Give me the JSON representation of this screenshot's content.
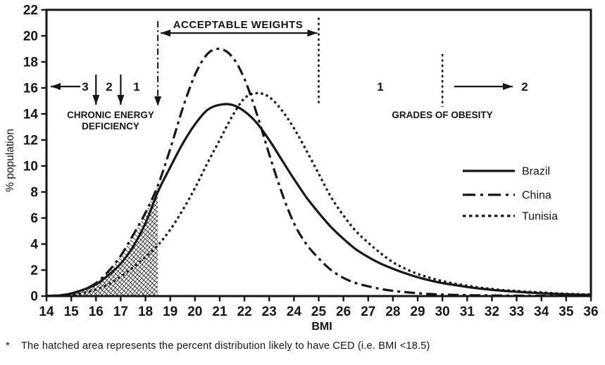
{
  "colors": {
    "ink": "#151515",
    "background": "#ffffff"
  },
  "chart_data": {
    "type": "line",
    "title": "",
    "xlabel": "BMI",
    "ylabel": "% population",
    "xlim": [
      14,
      36
    ],
    "ylim": [
      0,
      22
    ],
    "grid": false,
    "x_ticks": [
      14,
      15,
      16,
      17,
      18,
      19,
      20,
      21,
      22,
      23,
      24,
      25,
      26,
      27,
      28,
      29,
      30,
      31,
      32,
      33,
      34,
      35,
      36
    ],
    "y_ticks": [
      0,
      2,
      4,
      6,
      8,
      10,
      12,
      14,
      16,
      18,
      20,
      22
    ],
    "x": [
      14,
      14.5,
      15,
      15.5,
      16,
      16.5,
      17,
      17.5,
      18,
      18.5,
      19,
      19.5,
      20,
      20.5,
      21,
      21.5,
      22,
      22.5,
      23,
      23.5,
      24,
      24.5,
      25,
      25.5,
      26,
      26.5,
      27,
      27.5,
      28,
      28.5,
      29,
      29.5,
      30,
      30.5,
      31,
      31.5,
      32,
      32.5,
      33,
      33.5,
      34,
      34.5,
      35,
      35.5,
      36
    ],
    "series": [
      {
        "name": "Brazil",
        "style": "solid",
        "values": [
          0,
          0.05,
          0.2,
          0.5,
          0.9,
          1.6,
          2.5,
          3.8,
          5.6,
          8.0,
          9.9,
          11.7,
          13.2,
          14.3,
          14.7,
          14.7,
          14.2,
          13.3,
          12.0,
          10.5,
          9.0,
          7.6,
          6.4,
          5.3,
          4.4,
          3.6,
          3.0,
          2.5,
          2.1,
          1.75,
          1.45,
          1.2,
          1.0,
          0.85,
          0.7,
          0.58,
          0.48,
          0.4,
          0.33,
          0.27,
          0.22,
          0.18,
          0.14,
          0.11,
          0.09
        ]
      },
      {
        "name": "China",
        "style": "dash-dot",
        "values": [
          0,
          0.05,
          0.2,
          0.5,
          1.0,
          1.9,
          3.1,
          4.7,
          6.4,
          8.5,
          11.3,
          14.4,
          17.0,
          18.6,
          19.0,
          18.4,
          16.7,
          14.0,
          10.9,
          8.0,
          5.6,
          4.0,
          2.9,
          2.0,
          1.4,
          1.0,
          0.75,
          0.55,
          0.4,
          0.3,
          0.22,
          0.16,
          0.12,
          0.09,
          0.07,
          0.06,
          0.05,
          0.04,
          0.03,
          0.03,
          0.02,
          0.02,
          0.02,
          0.01,
          0.01
        ]
      },
      {
        "name": "Tunisia",
        "style": "dotted",
        "values": [
          0,
          0,
          0.1,
          0.25,
          0.5,
          0.9,
          1.5,
          2.2,
          3.0,
          3.9,
          5.1,
          6.6,
          8.3,
          10.2,
          12.0,
          13.8,
          15.2,
          15.6,
          15.3,
          14.3,
          12.9,
          11.2,
          9.4,
          7.6,
          6.2,
          5.0,
          4.1,
          3.3,
          2.6,
          2.1,
          1.7,
          1.4,
          1.15,
          0.95,
          0.8,
          0.65,
          0.55,
          0.45,
          0.4,
          0.33,
          0.28,
          0.22,
          0.18,
          0.15,
          0.12
        ]
      }
    ],
    "legend": {
      "position": "right-middle",
      "items": [
        {
          "label": "Brazil",
          "style": "solid"
        },
        {
          "label": "China",
          "style": "dash-dot"
        },
        {
          "label": "Tunisia",
          "style": "dotted"
        }
      ]
    },
    "hatched_region": {
      "bounded_by": "China",
      "bmi_max": 18.5,
      "meaning": "percent distribution likely to have CED"
    },
    "annotations": {
      "acceptable_weights": {
        "label": "ACCEPTABLE WEIGHTS",
        "range_bmi": [
          18.5,
          25
        ]
      },
      "ced": {
        "line1": "CHRONIC ENERGY",
        "line2": "DEFICIENCY",
        "grades": [
          "3",
          "2",
          "1"
        ],
        "grade_boundaries_bmi": [
          16,
          17,
          18.5
        ]
      },
      "obesity": {
        "label": "GRADES OF OBESITY",
        "grades": [
          "1",
          "2"
        ],
        "grade_boundaries_bmi": [
          25,
          30
        ]
      }
    },
    "footnote_marker": "*",
    "footnote": "The hatched area represents the percent distribution likely to have CED (i.e. BMI <18.5)"
  }
}
